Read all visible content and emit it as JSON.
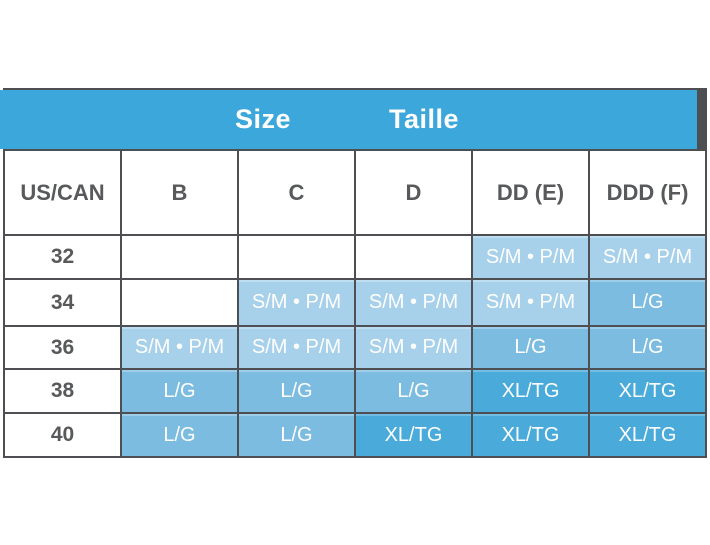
{
  "chart_data": {
    "type": "table",
    "title": {
      "en": "Size",
      "fr": "Taille"
    },
    "row_header_label": "US/CAN",
    "columns": [
      "US/CAN",
      "B",
      "C",
      "D",
      "DD (E)",
      "DDD (F)"
    ],
    "rows": [
      {
        "label": "32",
        "cells": [
          "",
          "",
          "",
          "S/M • P/M",
          "S/M • P/M"
        ]
      },
      {
        "label": "34",
        "cells": [
          "",
          "S/M • P/M",
          "S/M • P/M",
          "S/M • P/M",
          "L/G"
        ]
      },
      {
        "label": "36",
        "cells": [
          "S/M • P/M",
          "S/M • P/M",
          "S/M • P/M",
          "L/G",
          "L/G"
        ]
      },
      {
        "label": "38",
        "cells": [
          "L/G",
          "L/G",
          "L/G",
          "XL/TG",
          "XL/TG"
        ]
      },
      {
        "label": "40",
        "cells": [
          "L/G",
          "L/G",
          "XL/TG",
          "XL/TG",
          "XL/TG"
        ]
      }
    ],
    "value_legend": {
      "sm": "S/M • P/M",
      "lg": "L/G",
      "xl": "XL/TG"
    }
  },
  "colors": {
    "header_bar": "#3CA7DA",
    "cell_sm": "#A7D0EA",
    "cell_lg": "#7CBCE1",
    "cell_xl": "#4AABDB",
    "border": "#4E4F52",
    "gray_text": "#58595B",
    "value_text": "#FFFFFF",
    "title_text": "#FFFFFF"
  }
}
